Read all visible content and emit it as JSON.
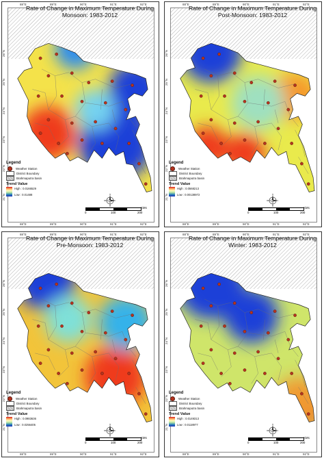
{
  "legend": {
    "heading": "Legend",
    "station": "Weather Station",
    "district": "District Boundary",
    "basin": "Brahmaputra basin",
    "trend_heading": "Trend Value"
  },
  "scale": {
    "units": "KMs",
    "labels": [
      "0",
      "100",
      "200"
    ]
  },
  "ticks_top": [
    "88°E",
    "89°E",
    "90°E",
    "91°E",
    "92°E"
  ],
  "ticks_bottom": [
    "88°E",
    "89°E",
    "90°E",
    "91°E",
    "92°E"
  ],
  "ticks_left": [
    "26°N",
    "25°N",
    "24°N",
    "23°N",
    "22°N",
    "21°N"
  ],
  "panels": [
    {
      "title_line1": "Rate of Change in Maximum Temperature During",
      "title_line2": "Monsoon: 1983-2012",
      "high": "High : 0.0166529",
      "low": "Low : 0.01488",
      "colors": {
        "base": "#f4e24a",
        "zones": [
          "#ef3b1f",
          "#1f3fd8",
          "#2a8cf0",
          "#74d2f0"
        ]
      }
    },
    {
      "title_line1": "Rate of Change in Maximum Temperature During",
      "title_line2": "Post-Monsoon: 1983-2012",
      "high": "High : 0.0568213",
      "low": "Low : 0.00138972",
      "colors": {
        "base": "#e9ea4c",
        "zones": [
          "#ef3b1f",
          "#1f3fd8",
          "#f59a2c",
          "#9fe0c0"
        ]
      }
    },
    {
      "title_line1": "Rate of Change in Maximum Temperature During",
      "title_line2": "Pre-Monsoon: 1983-2012",
      "high": "High : 0.0983636",
      "low": "Low : 0.0256405",
      "colors": {
        "base": "#f2c43a",
        "zones": [
          "#ef3b1f",
          "#1f3fd8",
          "#36b2ea",
          "#7fe0d8"
        ]
      }
    },
    {
      "title_line1": "Rate of Change in Maximum Temperature During",
      "title_line2": "Winter: 1983-2012",
      "high": "High : 0.0149313",
      "low": "Low : 0.0118977",
      "colors": {
        "base": "#cfe56a",
        "zones": [
          "#ef3b1f",
          "#1f3fd8",
          "#3d8cf2",
          "#f09a30"
        ]
      }
    }
  ]
}
